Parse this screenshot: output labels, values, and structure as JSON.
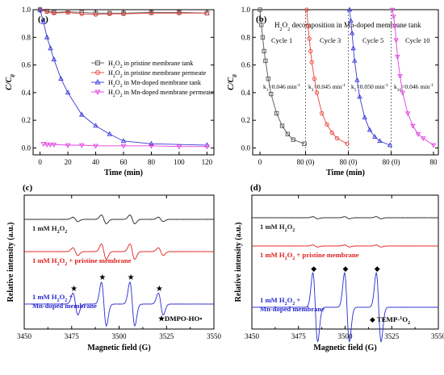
{
  "chart_data": [
    {
      "panel": "(a)",
      "type": "line",
      "xlabel": "Time (min)",
      "ylabel": "C/C0",
      "xlim": [
        -5,
        125
      ],
      "ylim": [
        -0.05,
        1.0
      ],
      "xticks": [
        0,
        20,
        40,
        60,
        80,
        100,
        120
      ],
      "yticks": [
        0.0,
        0.2,
        0.4,
        0.6,
        0.8,
        1.0
      ],
      "legend_position": "right",
      "series": [
        {
          "name": "H2O2 in pristine membrane tank",
          "color": "#555555",
          "marker": "square",
          "x": [
            0,
            5,
            10,
            20,
            30,
            40,
            50,
            60,
            80,
            100,
            120
          ],
          "y": [
            1.0,
            0.99,
            0.98,
            0.985,
            0.98,
            0.975,
            0.975,
            0.975,
            0.98,
            0.98,
            0.975
          ]
        },
        {
          "name": "H2O2 in pristine membrane permeate",
          "color": "#e8413c",
          "marker": "circle",
          "x": [
            0,
            5,
            10,
            20,
            30,
            40,
            50,
            60,
            80,
            100,
            120
          ],
          "y": [
            1.0,
            0.985,
            0.975,
            0.98,
            0.97,
            0.965,
            0.97,
            0.97,
            0.975,
            0.975,
            0.975
          ]
        },
        {
          "name": "H2O2 in Mn-doped membrane tank",
          "color": "#3a3ad6",
          "marker": "triangle",
          "x": [
            0,
            2.5,
            5,
            7.5,
            10,
            15,
            20,
            30,
            40,
            50,
            60,
            80,
            120
          ],
          "y": [
            1.0,
            0.91,
            0.8,
            0.72,
            0.64,
            0.5,
            0.4,
            0.24,
            0.16,
            0.1,
            0.05,
            0.03,
            0.02
          ]
        },
        {
          "name": "H2O2 in Mn-doped membrane permeate",
          "color": "#e040e0",
          "marker": "triangle-down",
          "x": [
            2.5,
            5,
            7.5,
            10,
            20,
            30,
            40,
            60,
            80,
            100,
            120
          ],
          "y": [
            0.03,
            0.025,
            0.025,
            0.025,
            0.02,
            0.02,
            0.015,
            0.015,
            0.015,
            0.01,
            0.01
          ]
        }
      ]
    },
    {
      "panel": "(b)",
      "type": "line",
      "title": "H2O2 decomposition in Mn-doped membrane tank",
      "ylabel": "C/C0",
      "xlabel": "Time (min)",
      "ylim": [
        -0.05,
        1.0
      ],
      "yticks": [
        0.0,
        0.2,
        0.4,
        0.6,
        0.8,
        1.0
      ],
      "segment_tick_labels": [
        "0",
        "80 (0)",
        "80 (0)",
        "80 (0)",
        "80"
      ],
      "cycles": [
        {
          "name": "Cycle 1",
          "k": "k1=0.046 min-1",
          "color": "#555555",
          "marker": "square",
          "x": [
            0,
            2.5,
            5,
            7.5,
            10,
            15,
            20,
            30,
            40,
            50,
            60,
            80
          ],
          "y": [
            1.0,
            0.89,
            0.8,
            0.7,
            0.63,
            0.5,
            0.39,
            0.25,
            0.16,
            0.1,
            0.06,
            0.03
          ]
        },
        {
          "name": "Cycle 3",
          "k": "k3=0.045 min-1",
          "color": "#e8413c",
          "marker": "circle",
          "x": [
            0,
            2.5,
            5,
            7.5,
            10,
            15,
            20,
            30,
            40,
            50,
            60,
            80
          ],
          "y": [
            1.0,
            0.88,
            0.79,
            0.7,
            0.62,
            0.5,
            0.4,
            0.25,
            0.17,
            0.11,
            0.07,
            0.03
          ]
        },
        {
          "name": "Cycle 5",
          "k": "k5=0.050 min-1",
          "color": "#3a3ad6",
          "marker": "triangle",
          "x": [
            0,
            2.5,
            5,
            7.5,
            10,
            15,
            20,
            30,
            40,
            50,
            60,
            80
          ],
          "y": [
            1.0,
            0.92,
            0.83,
            0.72,
            0.63,
            0.49,
            0.37,
            0.22,
            0.13,
            0.08,
            0.05,
            0.02
          ]
        },
        {
          "name": "Cycle 10",
          "k": "k10=0.046 min-1",
          "color": "#e040e0",
          "marker": "triangle-down",
          "x": [
            0,
            2.5,
            5,
            7.5,
            10,
            15,
            20,
            30,
            40,
            50,
            60,
            80
          ],
          "y": [
            1.0,
            0.95,
            0.88,
            0.78,
            0.66,
            0.52,
            0.4,
            0.25,
            0.16,
            0.1,
            0.07,
            0.02
          ]
        }
      ]
    },
    {
      "panel": "(c)",
      "type": "line",
      "xlabel": "Magnetic field (G)",
      "ylabel": "Relative intensity (a.u.)",
      "xlim": [
        3450,
        3550
      ],
      "xticks": [
        3450,
        3475,
        3500,
        3525,
        3550
      ],
      "spectrum_peaks_G": [
        3477,
        3492,
        3507,
        3522
      ],
      "peak_relative_amplitudes": [
        1,
        2,
        2,
        1
      ],
      "traces": [
        {
          "label": "1 mM H2O2",
          "color": "#222222",
          "amplitude": 0.2
        },
        {
          "label": "1 mM H2O2 + pristine membrane",
          "color": "#e02020",
          "amplitude": 0.35
        },
        {
          "label_line1": "1 mM H2O2 +",
          "label_line2": "Mn-doped membrane",
          "color": "#2a2ad0",
          "amplitude": 1.0
        }
      ],
      "peak_marker": "★",
      "annotation": "★DMPO-HO•"
    },
    {
      "panel": "(d)",
      "type": "line",
      "xlabel": "Magnetic field (G)",
      "ylabel": "Relative intensity (a.u.)",
      "xlim": [
        3450,
        3550
      ],
      "xticks": [
        3450,
        3475,
        3500,
        3525,
        3550
      ],
      "spectrum_peaks_G": [
        3484,
        3501,
        3518
      ],
      "peak_relative_amplitudes": [
        1,
        1,
        1
      ],
      "traces": [
        {
          "label": "1 mM H2O2",
          "color": "#222222",
          "amplitude": 0.03
        },
        {
          "label": "1 mM H2O2 + pristine membrane",
          "color": "#e02020",
          "amplitude": 0.03
        },
        {
          "label_line1": "1 mM H2O2 +",
          "label_line2": "Mn-doped membrane",
          "color": "#2a2ad0",
          "amplitude": 1.0
        }
      ],
      "peak_marker": "◆",
      "annotation": "◆ TEMP-1O2"
    }
  ]
}
